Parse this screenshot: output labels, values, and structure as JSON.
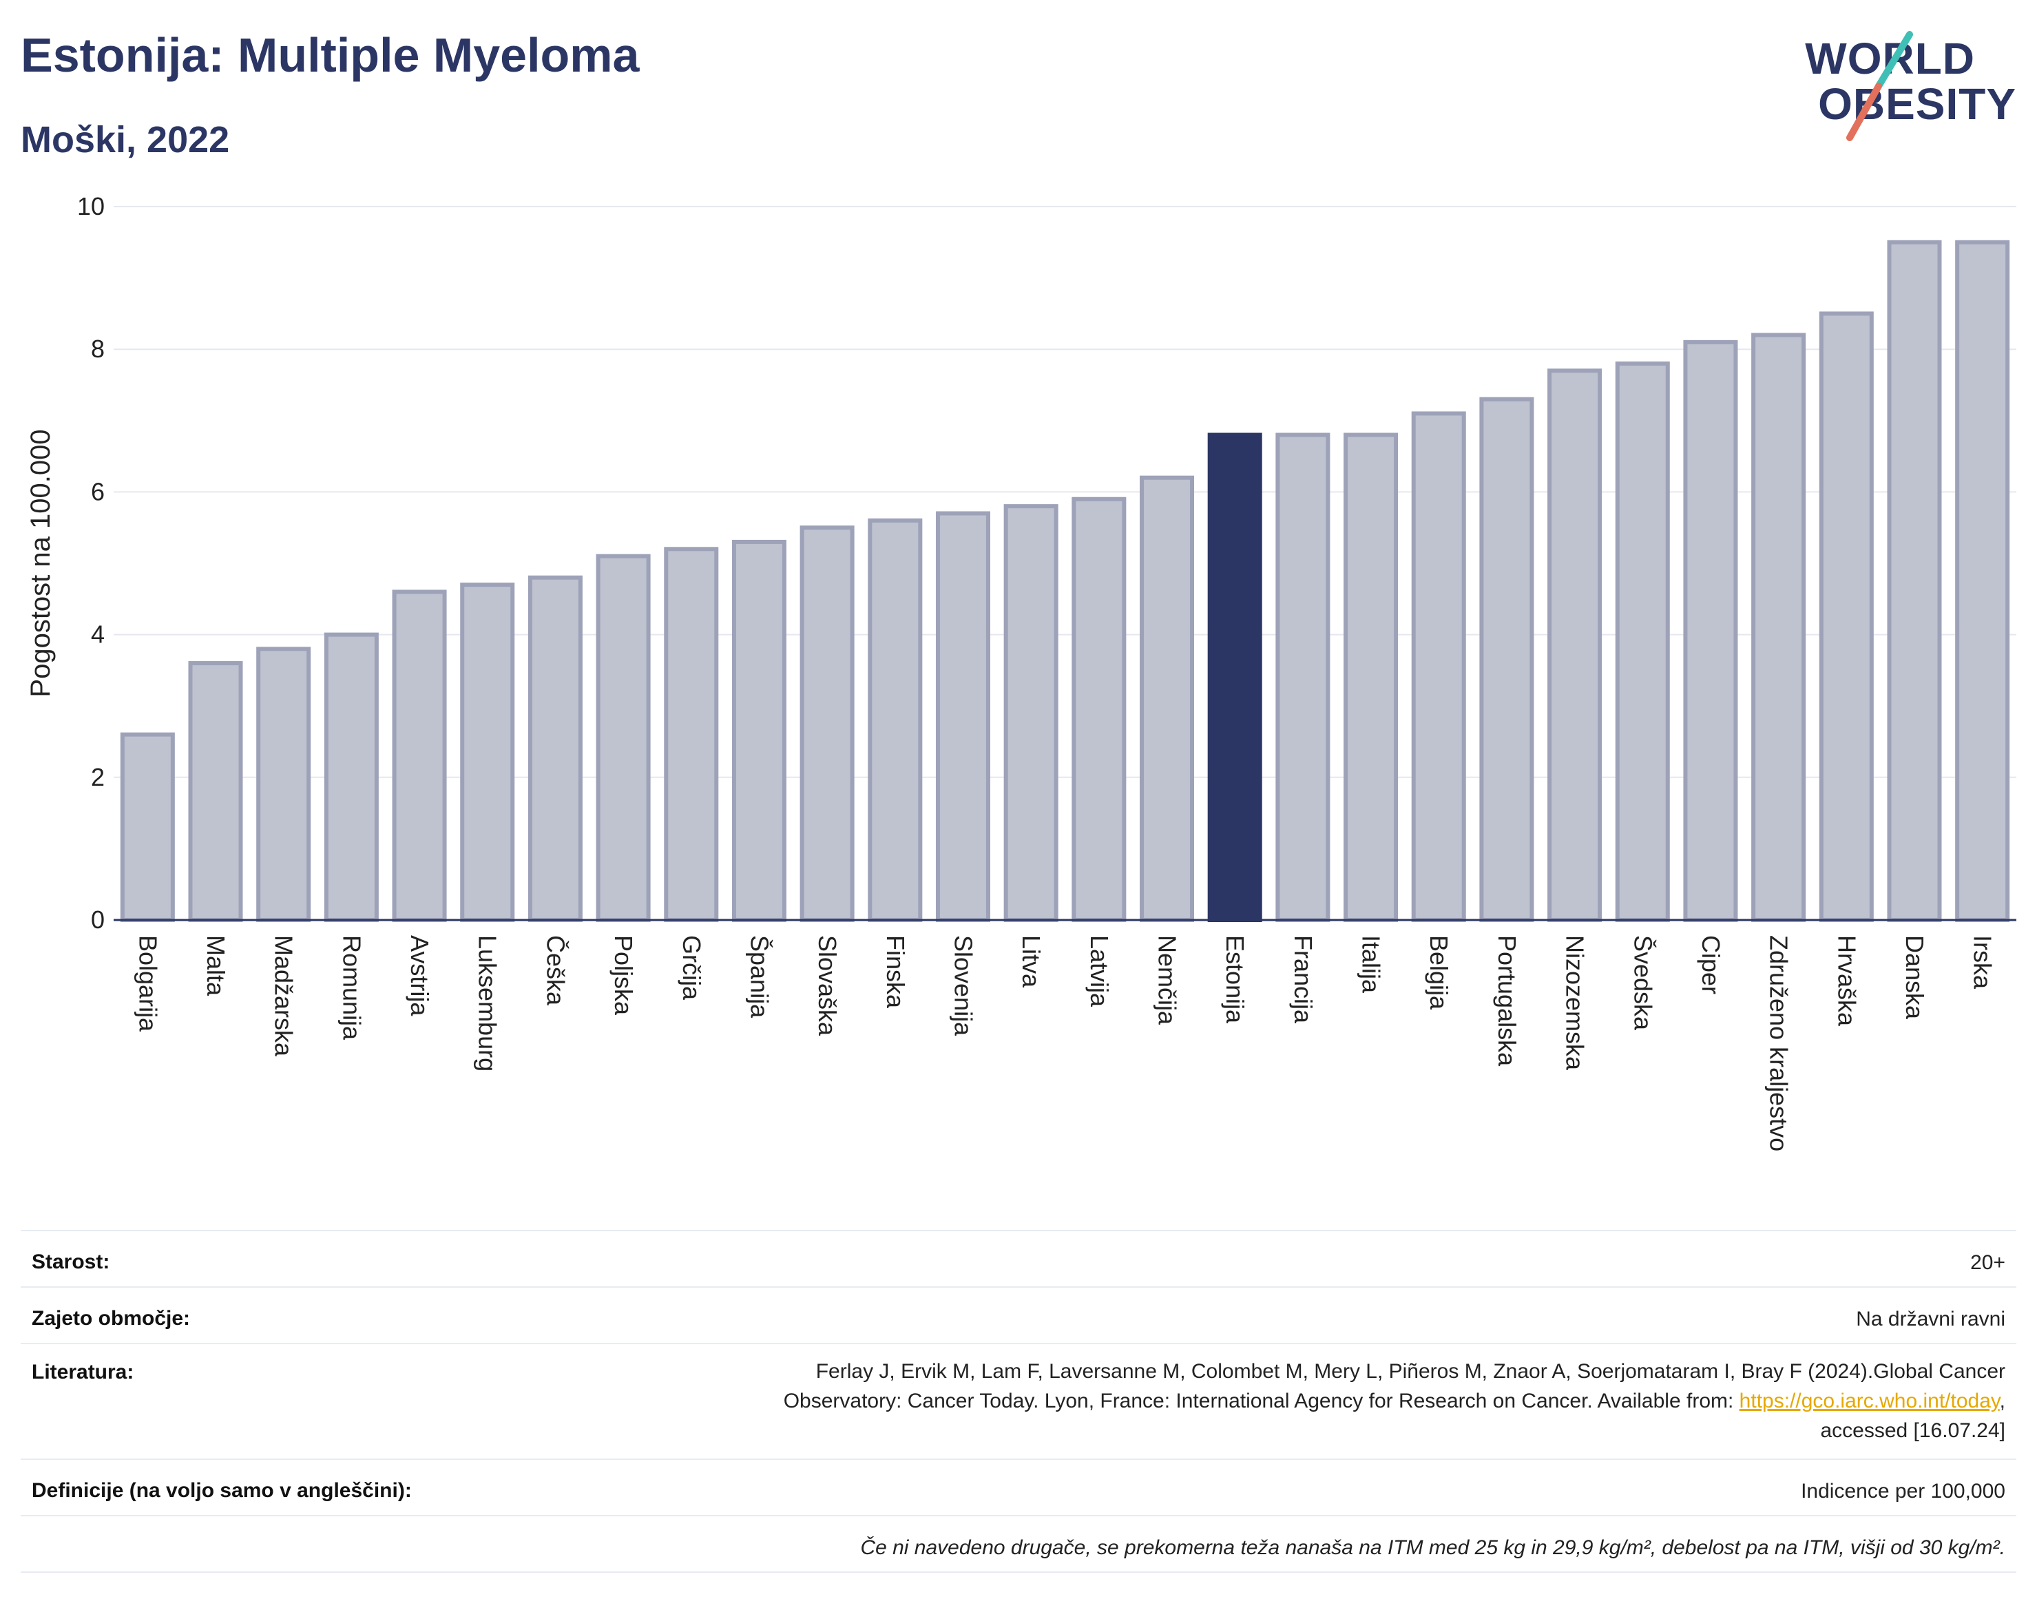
{
  "header": {
    "title": "Estonija: Multiple Myeloma",
    "subtitle": "Moški, 2022"
  },
  "logo": {
    "line1": "WORLD",
    "line2": "OBESITY"
  },
  "chart_data": {
    "type": "bar",
    "ylabel": "Pogostost na 100.000",
    "xlabel": "",
    "ylim": [
      0,
      10
    ],
    "yticks": [
      0,
      2,
      4,
      6,
      8,
      10
    ],
    "grid": true,
    "highlight": "Estonija",
    "categories": [
      "Bolgarija",
      "Malta",
      "Madžarska",
      "Romunija",
      "Avstrija",
      "Luksemburg",
      "Češka",
      "Poljska",
      "Grčija",
      "Španija",
      "Slovaška",
      "Finska",
      "Slovenija",
      "Litva",
      "Latvija",
      "Nemčija",
      "Estonija",
      "Francija",
      "Italija",
      "Belgija",
      "Portugalska",
      "Nizozemska",
      "Švedska",
      "Ciper",
      "Združeno kraljestvo",
      "Hrvaška",
      "Danska",
      "Irska"
    ],
    "values": [
      2.6,
      3.6,
      3.8,
      4.0,
      4.6,
      4.7,
      4.8,
      5.1,
      5.2,
      5.3,
      5.5,
      5.6,
      5.7,
      5.8,
      5.9,
      6.2,
      6.8,
      6.8,
      6.8,
      7.1,
      7.3,
      7.7,
      7.8,
      8.1,
      8.2,
      8.5,
      9.5,
      9.5
    ],
    "colors": {
      "bar": "#bfc2cf",
      "bar_border": "#9da2b8",
      "highlight": "#2b3664"
    }
  },
  "info": {
    "age_label": "Starost:",
    "age_value": "20+",
    "coverage_label": "Zajeto območje:",
    "coverage_value": "Na državni ravni",
    "literature_label": "Literatura:",
    "literature_line1": "Ferlay J, Ervik M, Lam F, Laversanne M, Colombet M, Mery L, Piñeros M, Znaor A, Soerjomataram I, Bray F (2024).Global Cancer",
    "literature_line2": "Observatory: Cancer Today. Lyon, France: International Agency for Research on Cancer. Available from: ",
    "literature_link": "https://gco.iarc.who.int/today",
    "literature_line2_end": ",",
    "literature_line3": "accessed [16.07.24]",
    "definitions_label": "Definicije (na voljo samo v angleščini):",
    "definitions_value": "Indicence per 100,000",
    "note": "Če ni navedeno drugače, se prekomerna teža nanaša na ITM med 25 kg in 29,9 kg/m², debelost pa na ITM, višji od 30 kg/m²."
  }
}
